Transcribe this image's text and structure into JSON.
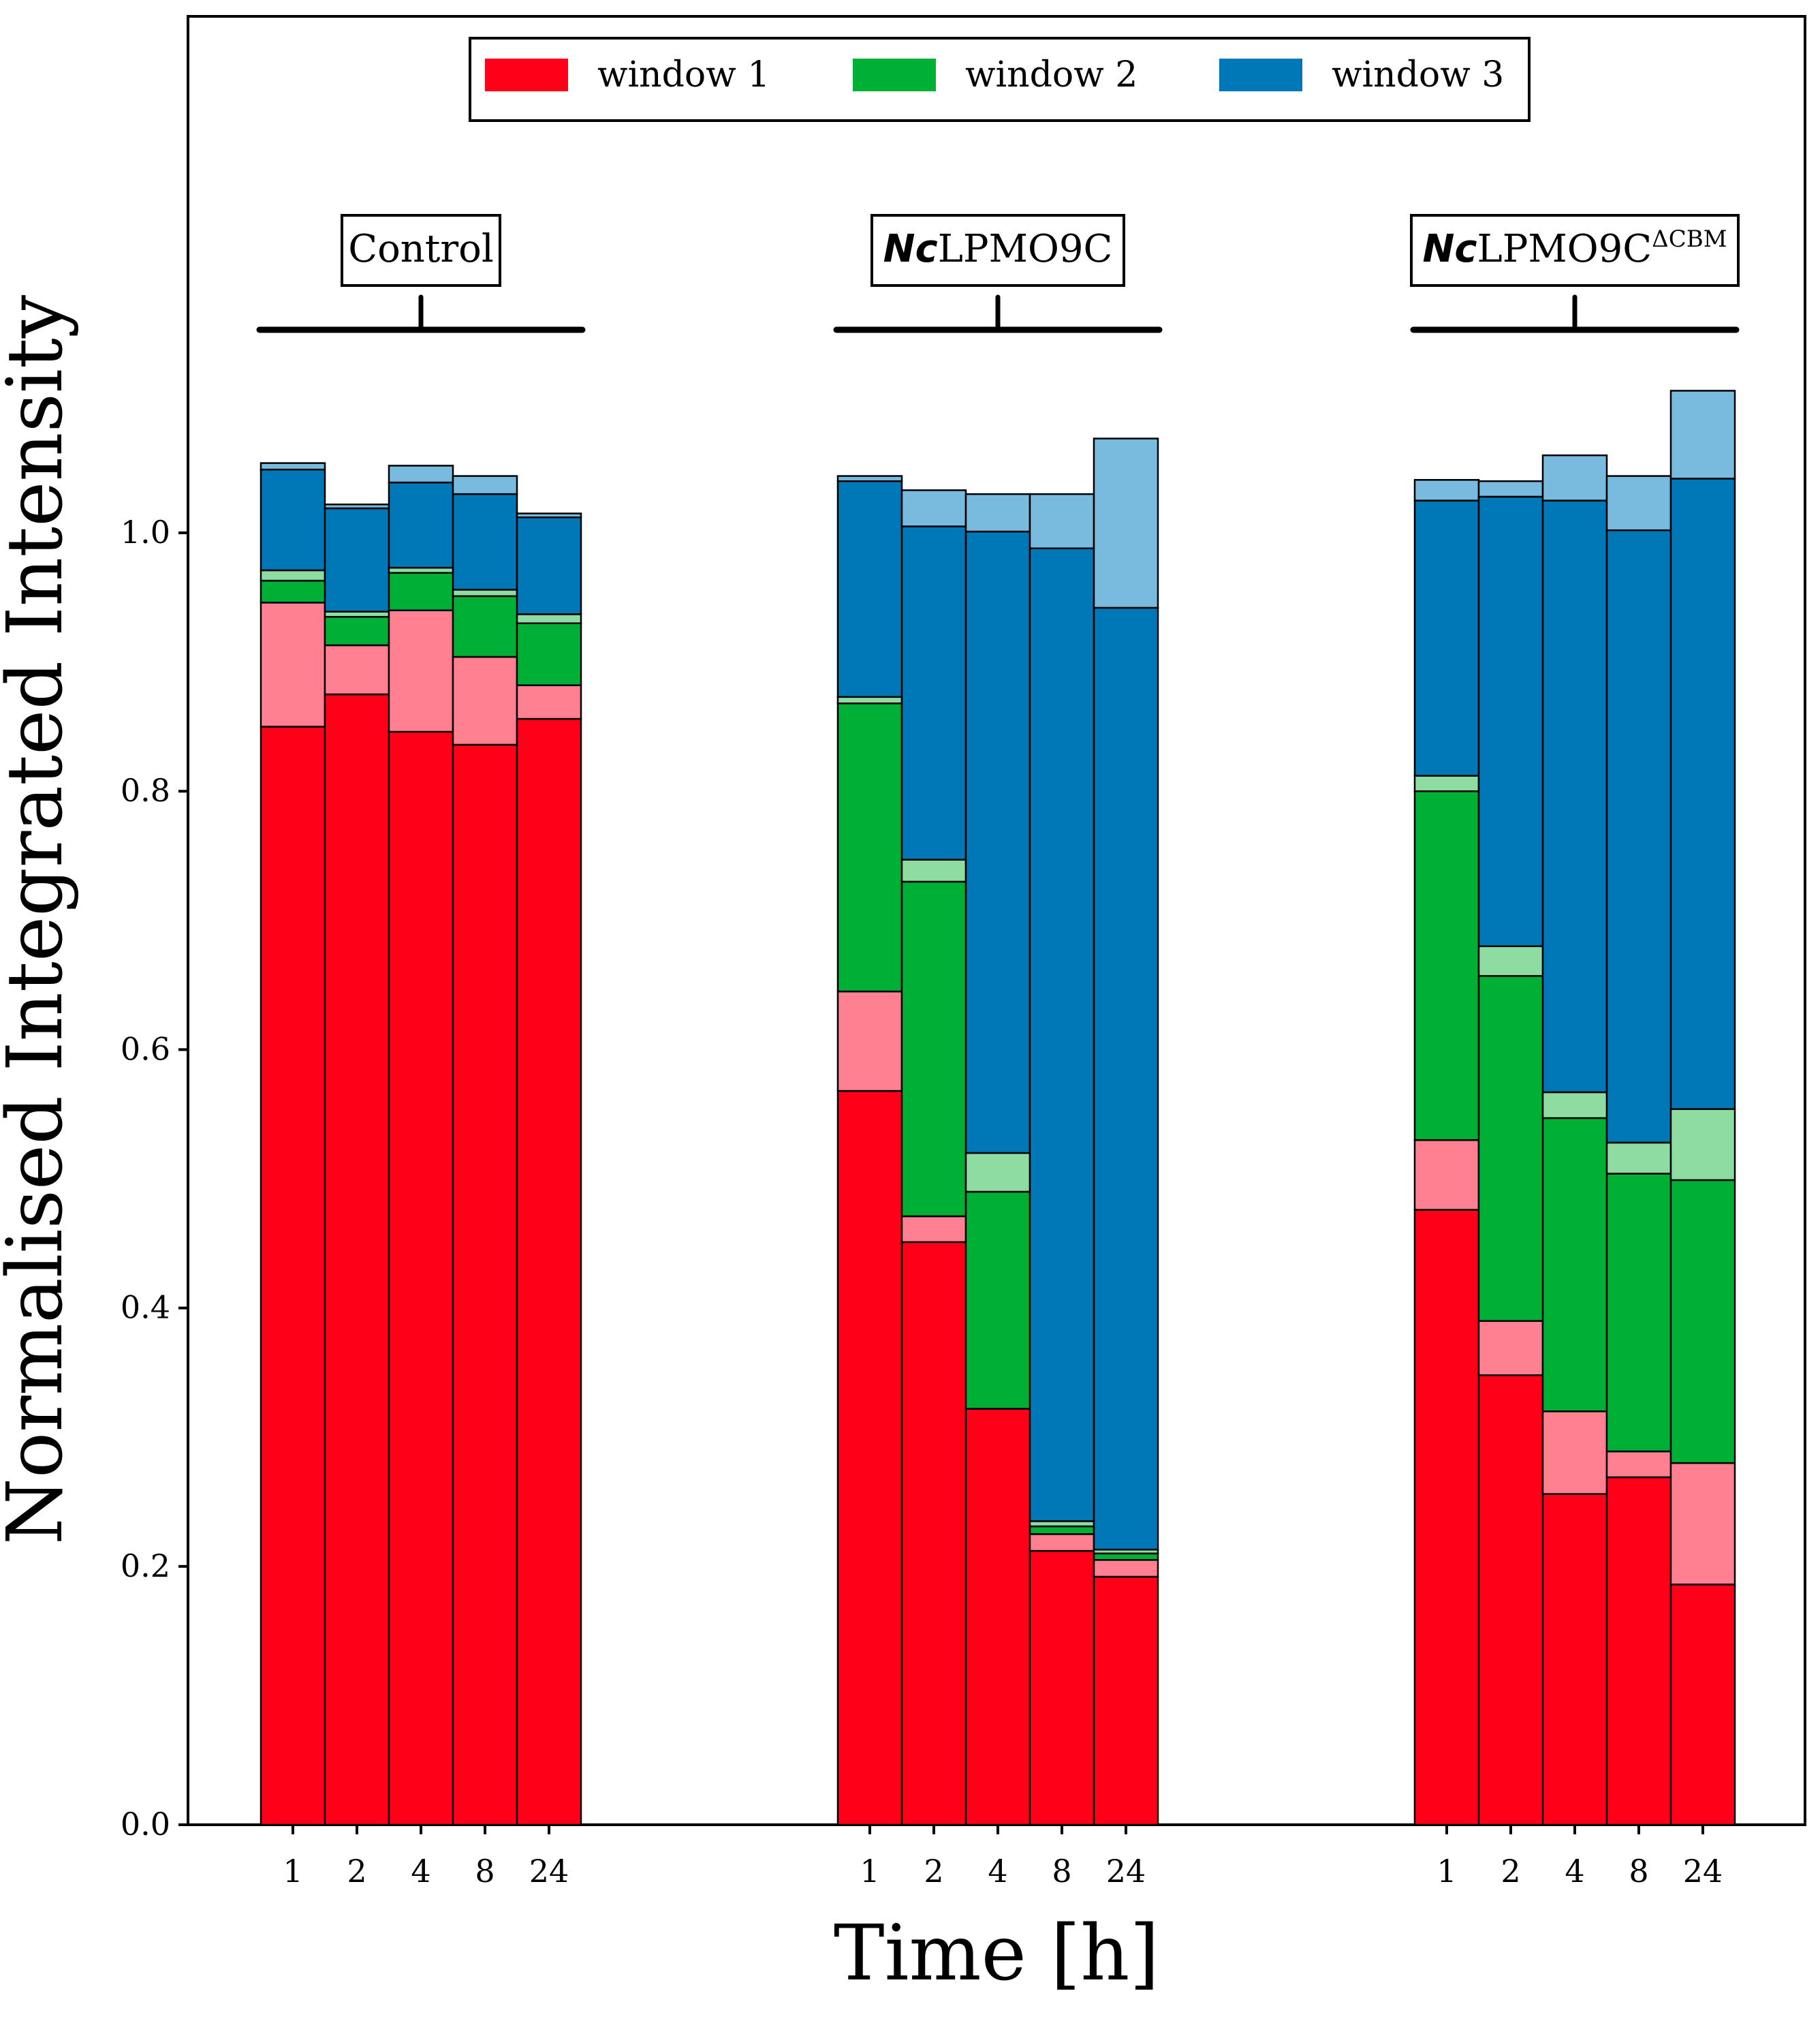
{
  "chart_data": {
    "type": "bar",
    "stacked": true,
    "xlabel": "Time [h]",
    "ylabel": "Normalised Integrated Intensity",
    "ylim": [
      0,
      1.2
    ],
    "yticks": [
      "0.0",
      "0.2",
      "0.4",
      "0.6",
      "0.8",
      "1.0"
    ],
    "grid": false,
    "legend_position": "top-center",
    "legend": [
      {
        "name": "window 1",
        "color": "#ff0019"
      },
      {
        "name": "window 2",
        "color": "#00b034"
      },
      {
        "name": "window 3",
        "color": "#0077b6"
      }
    ],
    "colors": {
      "window1_dark": "#ff0019",
      "window1_light": "#ff8090",
      "window2_dark": "#00b034",
      "window2_light": "#8fdca3",
      "window3_dark": "#0077b6",
      "window3_light": "#79bbde"
    },
    "groups": [
      {
        "label": "Control",
        "label_italic": "",
        "label_superscript": "",
        "categories": [
          "1",
          "2",
          "4",
          "8",
          "24"
        ],
        "segments": {
          "window1_dark": [
            0.85,
            0.875,
            0.846,
            0.836,
            0.856
          ],
          "window1_light": [
            0.096,
            0.038,
            0.094,
            0.068,
            0.026
          ],
          "window2_dark": [
            0.017,
            0.022,
            0.029,
            0.047,
            0.048
          ],
          "window2_light": [
            0.008,
            0.004,
            0.004,
            0.005,
            0.007
          ],
          "window3_dark": [
            0.078,
            0.08,
            0.066,
            0.074,
            0.075
          ],
          "window3_light": [
            0.005,
            0.003,
            0.013,
            0.014,
            0.003
          ]
        }
      },
      {
        "label": "LPMO9C",
        "label_italic": "Nc",
        "label_superscript": "",
        "categories": [
          "1",
          "2",
          "4",
          "8",
          "24"
        ],
        "segments": {
          "window1_dark": [
            0.568,
            0.451,
            0.322,
            0.212,
            0.192
          ],
          "window1_light": [
            0.077,
            0.02,
            0.0,
            0.013,
            0.013
          ],
          "window2_dark": [
            0.223,
            0.259,
            0.168,
            0.006,
            0.005
          ],
          "window2_light": [
            0.005,
            0.017,
            0.03,
            0.004,
            0.003
          ],
          "window3_dark": [
            0.167,
            0.258,
            0.481,
            0.753,
            0.729
          ],
          "window3_light": [
            0.004,
            0.028,
            0.029,
            0.042,
            0.131
          ]
        }
      },
      {
        "label": "LPMO9C",
        "label_italic": "Nc",
        "label_superscript": "ΔCBM",
        "categories": [
          "1",
          "2",
          "4",
          "8",
          "24"
        ],
        "segments": {
          "window1_dark": [
            0.476,
            0.348,
            0.256,
            0.269,
            0.186
          ],
          "window1_light": [
            0.054,
            0.042,
            0.064,
            0.02,
            0.094
          ],
          "window2_dark": [
            0.27,
            0.267,
            0.227,
            0.215,
            0.219
          ],
          "window2_light": [
            0.012,
            0.023,
            0.02,
            0.024,
            0.055
          ],
          "window3_dark": [
            0.213,
            0.348,
            0.458,
            0.474,
            0.488
          ],
          "window3_light": [
            0.016,
            0.012,
            0.035,
            0.042,
            0.068
          ]
        }
      }
    ]
  }
}
